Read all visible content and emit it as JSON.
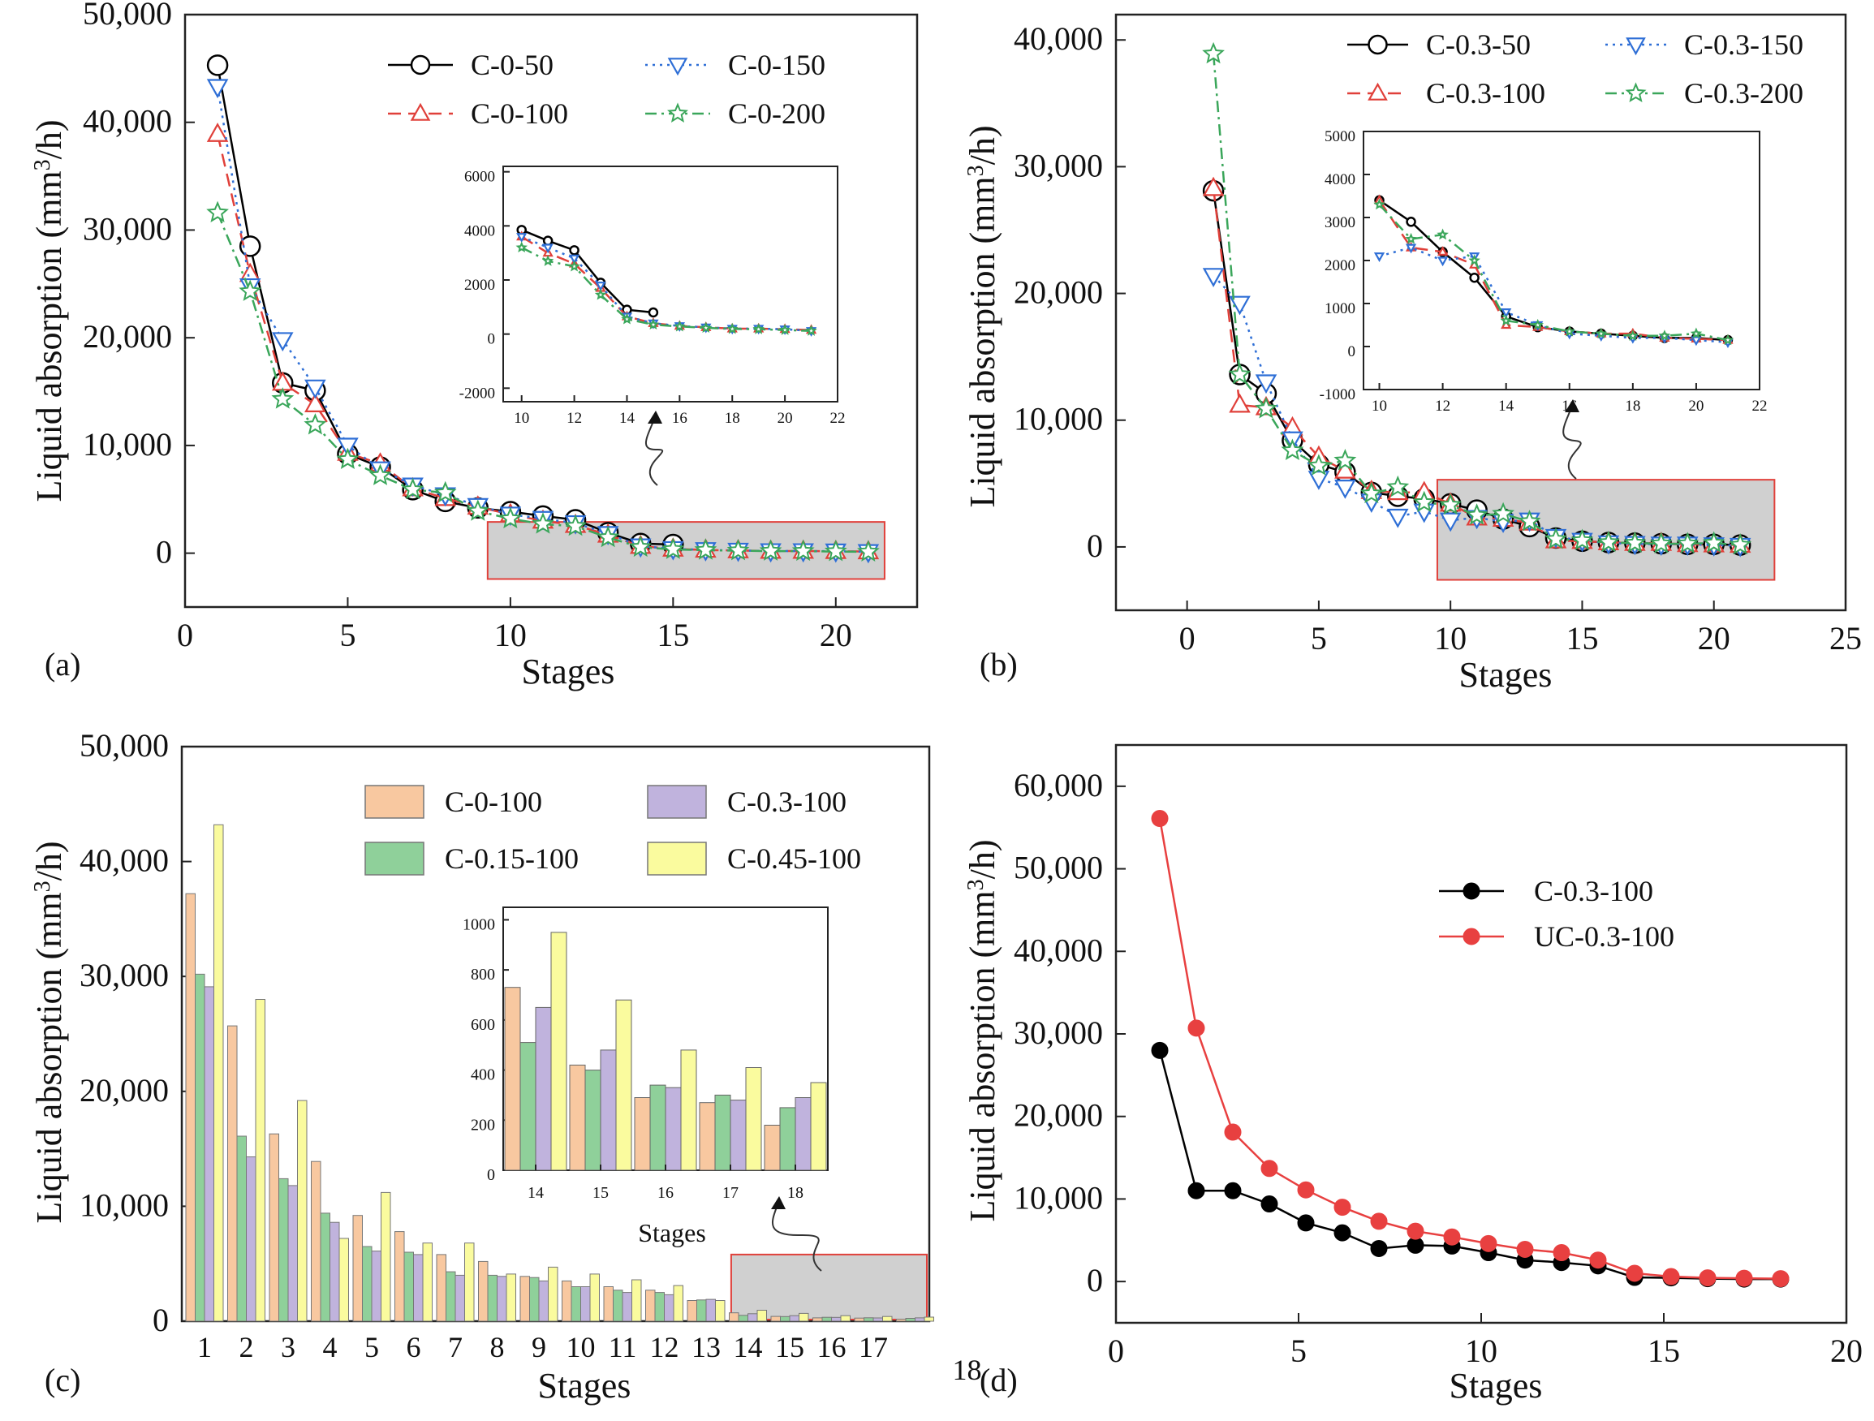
{
  "figure": {
    "background": "#ffffff"
  },
  "chart_data": [
    {
      "id": "a",
      "panel_label": "(a)",
      "type": "line",
      "title": "",
      "xlabel": "Stages",
      "ylabel": "Liquid absorption (mm³/h)",
      "xlim": [
        0,
        22.5
      ],
      "ylim": [
        -5000,
        50000
      ],
      "xticks": [
        0,
        5,
        10,
        15,
        20
      ],
      "yticks": [
        0,
        10000,
        20000,
        30000,
        40000,
        50000
      ],
      "ytick_labels": [
        "0",
        "10,000",
        "20,000",
        "30,000",
        "40,000",
        "50,000"
      ],
      "legend_position": "top-right",
      "series": [
        {
          "name": "C-0-50",
          "color": "#000000",
          "marker": "circle",
          "dash": "solid",
          "x": [
            1,
            2,
            3,
            4,
            5,
            6,
            7,
            8,
            9,
            10,
            11,
            12,
            13,
            14,
            15
          ],
          "values": [
            45300,
            28500,
            15800,
            15100,
            9200,
            8000,
            5900,
            4800,
            4200,
            3850,
            3450,
            3100,
            1900,
            900,
            800
          ]
        },
        {
          "name": "C-0-100",
          "color": "#e0403a",
          "marker": "triangle-up",
          "dash": "dashed",
          "x": [
            1,
            2,
            3,
            4,
            5,
            6,
            7,
            8,
            9,
            10,
            11,
            12,
            13,
            14,
            15,
            16,
            17,
            18,
            19,
            20,
            21
          ],
          "values": [
            38900,
            25900,
            15800,
            13800,
            9300,
            8300,
            6000,
            5100,
            4300,
            3600,
            3000,
            2600,
            1700,
            650,
            400,
            300,
            250,
            200,
            200,
            180,
            150
          ]
        },
        {
          "name": "C-0-150",
          "color": "#2f6fd6",
          "marker": "triangle-down",
          "dash": "dotted",
          "x": [
            1,
            2,
            3,
            4,
            5,
            6,
            7,
            8,
            9,
            10,
            11,
            12,
            13,
            14,
            15,
            16,
            17,
            18,
            19,
            20,
            21
          ],
          "values": [
            43300,
            24800,
            19800,
            15400,
            10000,
            7800,
            6300,
            5400,
            4400,
            3600,
            3200,
            2800,
            1800,
            650,
            400,
            300,
            250,
            200,
            200,
            180,
            120
          ]
        },
        {
          "name": "C-0-200",
          "color": "#3aa65a",
          "marker": "star",
          "dash": "dashdot",
          "x": [
            1,
            2,
            3,
            4,
            5,
            6,
            7,
            8,
            9,
            10,
            11,
            12,
            13,
            14,
            15,
            16,
            17,
            18,
            19,
            20,
            21
          ],
          "values": [
            31600,
            24300,
            14300,
            11900,
            8700,
            7200,
            5900,
            5600,
            3900,
            3200,
            2700,
            2500,
            1450,
            550,
            350,
            280,
            230,
            190,
            180,
            150,
            120
          ]
        }
      ],
      "inset": {
        "xlim": [
          9.3,
          22
        ],
        "ylim": [
          -2500,
          6200
        ],
        "xticks": [
          10,
          12,
          14,
          16,
          18,
          20,
          22
        ],
        "yticks": [
          -2000,
          0,
          2000,
          4000,
          6000
        ]
      }
    },
    {
      "id": "b",
      "panel_label": "(b)",
      "type": "line",
      "title": "",
      "xlabel": "Stages",
      "ylabel": "Liquid absorption (mm³/h)",
      "xlim": [
        -2.7,
        25
      ],
      "ylim": [
        -5000,
        42000
      ],
      "xticks": [
        0,
        5,
        10,
        15,
        20,
        25
      ],
      "yticks": [
        0,
        10000,
        20000,
        30000,
        40000
      ],
      "ytick_labels": [
        "0",
        "10,000",
        "20,000",
        "30,000",
        "40,000"
      ],
      "legend_position": "top-right",
      "series": [
        {
          "name": "C-0.3-50",
          "color": "#000000",
          "marker": "circle",
          "dash": "solid",
          "x": [
            1,
            2,
            3,
            4,
            5,
            6,
            7,
            8,
            9,
            10,
            11,
            12,
            13,
            14,
            15,
            16,
            17,
            18,
            19,
            20,
            21
          ],
          "values": [
            28100,
            13600,
            12100,
            8400,
            6500,
            5900,
            4300,
            4000,
            3800,
            3400,
            2900,
            2200,
            1600,
            700,
            450,
            350,
            300,
            250,
            200,
            200,
            150
          ]
        },
        {
          "name": "C-0.3-100",
          "color": "#e0403a",
          "marker": "triangle-up",
          "dash": "dashed",
          "x": [
            1,
            2,
            3,
            4,
            5,
            6,
            7,
            8,
            9,
            10,
            11,
            12,
            13,
            14,
            15,
            16,
            17,
            18,
            19,
            20,
            21
          ],
          "values": [
            28300,
            11200,
            11000,
            9400,
            7100,
            6000,
            4400,
            4300,
            4300,
            3400,
            2300,
            2200,
            1900,
            500,
            450,
            350,
            300,
            300,
            200,
            180,
            150
          ]
        },
        {
          "name": "C-0.3-150",
          "color": "#2f6fd6",
          "marker": "triangle-down",
          "dash": "dotted",
          "x": [
            1,
            2,
            3,
            4,
            5,
            6,
            7,
            8,
            9,
            10,
            11,
            12,
            13,
            14,
            15,
            16,
            17,
            18,
            19,
            20,
            21
          ],
          "values": [
            21400,
            19200,
            13000,
            8500,
            5400,
            4700,
            3600,
            2400,
            2800,
            2100,
            2300,
            2000,
            2100,
            800,
            500,
            300,
            250,
            200,
            200,
            150,
            100
          ]
        },
        {
          "name": "C-0.3-200",
          "color": "#3aa65a",
          "marker": "star",
          "dash": "dashdot",
          "x": [
            1,
            2,
            3,
            4,
            5,
            6,
            7,
            8,
            9,
            10,
            11,
            12,
            13,
            14,
            15,
            16,
            17,
            18,
            19,
            20,
            21
          ],
          "values": [
            38900,
            13600,
            10900,
            7600,
            6400,
            6800,
            4200,
            4700,
            3500,
            3300,
            2500,
            2600,
            2000,
            600,
            500,
            350,
            300,
            250,
            250,
            300,
            150
          ]
        }
      ],
      "inset": {
        "xlim": [
          9.5,
          22
        ],
        "ylim": [
          -1000,
          5000
        ],
        "xticks": [
          10,
          12,
          14,
          16,
          18,
          20,
          22
        ],
        "yticks": [
          -1000,
          0,
          1000,
          2000,
          3000,
          4000,
          5000
        ]
      }
    },
    {
      "id": "c",
      "panel_label": "(c)",
      "type": "bar",
      "title": "",
      "xlabel": "Stages",
      "ylabel": "Liquid absorption (mm³/h)",
      "ylim": [
        0,
        50000
      ],
      "yticks": [
        0,
        10000,
        20000,
        30000,
        40000,
        50000
      ],
      "ytick_labels": [
        "0",
        "10,000",
        "20,000",
        "30,000",
        "40,000",
        "50,000"
      ],
      "categories": [
        "1",
        "2",
        "3",
        "4",
        "5",
        "6",
        "7",
        "8",
        "9",
        "10",
        "11",
        "12",
        "13",
        "14",
        "15",
        "16",
        "17",
        "18"
      ],
      "legend_position": "top-right",
      "series": [
        {
          "name": "C-0-100",
          "color": "#f8c8a0",
          "values": [
            37200,
            25700,
            16300,
            13900,
            9200,
            7800,
            5800,
            5200,
            3900,
            3500,
            3000,
            2700,
            1800,
            730,
            420,
            290,
            270,
            180
          ]
        },
        {
          "name": "C-0.15-100",
          "color": "#8fd09a",
          "values": [
            30200,
            16100,
            12400,
            9400,
            6500,
            6000,
            4300,
            4000,
            3800,
            3000,
            2700,
            2500,
            1850,
            510,
            400,
            340,
            300,
            250
          ]
        },
        {
          "name": "C-0.3-100",
          "color": "#c0b3dd",
          "values": [
            29100,
            14300,
            11800,
            8600,
            6100,
            5800,
            4000,
            3900,
            3500,
            3000,
            2500,
            2300,
            1900,
            650,
            480,
            330,
            280,
            290
          ]
        },
        {
          "name": "C-0.45-100",
          "color": "#fafb9e",
          "values": [
            43200,
            28000,
            19200,
            7200,
            11200,
            6800,
            6800,
            4100,
            4700,
            4100,
            3600,
            3100,
            1800,
            950,
            680,
            480,
            410,
            350
          ]
        }
      ],
      "inset": {
        "categories": [
          "14",
          "15",
          "16",
          "17",
          "18"
        ],
        "xlabel": "Stages",
        "ylim": [
          0,
          1050
        ],
        "yticks": [
          0,
          200,
          400,
          600,
          800,
          1000
        ]
      }
    },
    {
      "id": "d",
      "panel_label": "(d)",
      "type": "line",
      "title": "",
      "xlabel": "Stages",
      "ylabel": "Liquid absorption (mm³/h)",
      "xlim": [
        0,
        20
      ],
      "ylim": [
        -5000,
        65000
      ],
      "xticks": [
        0,
        5,
        10,
        15,
        20
      ],
      "yticks": [
        0,
        10000,
        20000,
        30000,
        40000,
        50000,
        60000
      ],
      "ytick_labels": [
        "0",
        "10,000",
        "20,000",
        "30,000",
        "40,000",
        "50,000",
        "60,000"
      ],
      "legend_position": "center-right",
      "series": [
        {
          "name": "C-0.3-100",
          "color": "#000000",
          "marker": "filled-circle",
          "x": [
            1,
            2,
            3,
            4,
            5,
            6,
            7,
            8,
            9,
            10,
            11,
            12,
            13,
            14,
            15,
            16,
            17,
            18
          ],
          "values": [
            28000,
            11000,
            11000,
            9400,
            7100,
            5900,
            4000,
            4400,
            4300,
            3500,
            2600,
            2300,
            1900,
            500,
            450,
            350,
            300,
            300
          ]
        },
        {
          "name": "UC-0.3-100",
          "color": "#e84040",
          "marker": "filled-circle",
          "x": [
            1,
            2,
            3,
            4,
            5,
            6,
            7,
            8,
            9,
            10,
            11,
            12,
            13,
            14,
            15,
            16,
            17,
            18
          ],
          "values": [
            56100,
            30700,
            18100,
            13700,
            11100,
            9000,
            7300,
            6100,
            5400,
            4600,
            3900,
            3500,
            2600,
            1000,
            600,
            450,
            400,
            350
          ]
        }
      ]
    }
  ]
}
